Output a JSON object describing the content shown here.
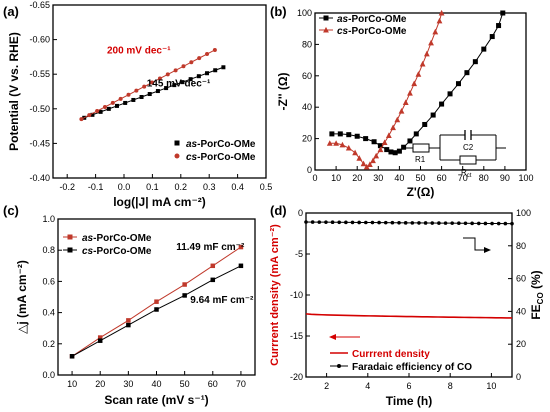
{
  "colors": {
    "as": "#000000",
    "cs": "#c0392b",
    "red": "#d40000",
    "axis": "#000000"
  },
  "chart_data": [
    {
      "panel_label": "(a)",
      "type": "line",
      "xlabel": "log(|J| mA cm⁻²)",
      "ylabel": "Potential (V vs. RHE)",
      "xlim": [
        -0.25,
        0.5
      ],
      "ylim": [
        -0.4,
        -0.65
      ],
      "y_reversed": true,
      "xticks": [
        "-0.2",
        "-0.1",
        "0.0",
        "0.1",
        "0.2",
        "0.3",
        "0.4",
        "0.5"
      ],
      "yticks": [
        "-0.40",
        "-0.45",
        "-0.50",
        "-0.55",
        "-0.60",
        "-0.65"
      ],
      "legend_position": "bottom-right",
      "series": [
        {
          "name": "as-PorCo-OMe",
          "marker": "square",
          "color": "#000000",
          "x_range": [
            -0.14,
            0.35
          ],
          "y_range": [
            -0.487,
            -0.56
          ]
        },
        {
          "name": "cs-PorCo-OMe",
          "marker": "circle",
          "color": "#c0392b",
          "x_range": [
            -0.15,
            0.32
          ],
          "y_range": [
            -0.485,
            -0.585
          ]
        }
      ],
      "annotations": [
        {
          "text": "200 mV dec⁻¹",
          "x": -0.06,
          "y": -0.58,
          "color": "#d40000"
        },
        {
          "text": "145 mV dec⁻¹",
          "x": 0.08,
          "y": -0.532,
          "color": "#000000"
        }
      ]
    },
    {
      "panel_label": "(b)",
      "type": "scatter",
      "xlabel": "Z'(Ω)",
      "ylabel": "-Z'' (Ω)",
      "xlim": [
        0,
        100
      ],
      "ylim": [
        0,
        100
      ],
      "xticks": [
        "0",
        "10",
        "20",
        "30",
        "40",
        "50",
        "60",
        "70",
        "80",
        "90",
        "100"
      ],
      "yticks": [
        "0",
        "20",
        "40",
        "60",
        "80",
        "100"
      ],
      "legend_position": "top-left",
      "series": [
        {
          "name": "as-PorCo-OMe",
          "marker": "square",
          "color": "#000000",
          "points": [
            [
              8,
              23
            ],
            [
              12,
              23
            ],
            [
              16,
              22.5
            ],
            [
              20,
              21.5
            ],
            [
              24,
              20
            ],
            [
              28,
              18
            ],
            [
              31,
              15.5
            ],
            [
              34,
              13
            ],
            [
              36,
              11.5
            ],
            [
              38,
              11
            ],
            [
              40,
              12
            ],
            [
              42,
              14.5
            ],
            [
              45,
              18.5
            ],
            [
              48,
              23
            ],
            [
              52,
              29
            ],
            [
              56,
              35
            ],
            [
              60,
              42
            ],
            [
              64,
              48.5
            ],
            [
              68,
              55
            ],
            [
              72,
              62
            ],
            [
              76,
              69
            ],
            [
              80,
              77
            ],
            [
              84,
              85
            ],
            [
              87,
              92
            ],
            [
              89,
              100
            ]
          ]
        },
        {
          "name": "cs-PorCo-OMe",
          "marker": "triangle",
          "color": "#c0392b",
          "points": [
            [
              7,
              17
            ],
            [
              10,
              17
            ],
            [
              13,
              16
            ],
            [
              16,
              14
            ],
            [
              19,
              11
            ],
            [
              21,
              7.5
            ],
            [
              23,
              4
            ],
            [
              24.5,
              2
            ],
            [
              26,
              3.5
            ],
            [
              27.5,
              6
            ],
            [
              29,
              9
            ],
            [
              31,
              13
            ],
            [
              33,
              17.5
            ],
            [
              35,
              22
            ],
            [
              37,
              27
            ],
            [
              39,
              32
            ],
            [
              41,
              37.5
            ],
            [
              43,
              43
            ],
            [
              45,
              49
            ],
            [
              47,
              55
            ],
            [
              49,
              61
            ],
            [
              51,
              67.5
            ],
            [
              53,
              74
            ],
            [
              55,
              81
            ],
            [
              57,
              88
            ],
            [
              59,
              95
            ],
            [
              60,
              100
            ]
          ]
        }
      ],
      "circuit_labels": {
        "c2": "C2",
        "r1": "R1",
        "rct_main": "R",
        "rct_sub": "ct"
      }
    },
    {
      "panel_label": "(c)",
      "type": "line",
      "xlabel": "Scan rate (mV s⁻¹)",
      "ylabel": "△j (mA cm⁻²)",
      "xlim": [
        5,
        75
      ],
      "ylim": [
        0.0,
        1.0
      ],
      "xticks": [
        "10",
        "20",
        "30",
        "40",
        "50",
        "60",
        "70"
      ],
      "yticks": [
        "0.0",
        "0.2",
        "0.4",
        "0.6",
        "0.8",
        "1.0"
      ],
      "legend_position": "top-left",
      "categories": [
        10,
        20,
        30,
        40,
        50,
        60,
        70
      ],
      "series": [
        {
          "name": "as-PorCo-OMe",
          "marker": "square",
          "color": "#c0392b",
          "values": [
            0.12,
            0.24,
            0.35,
            0.47,
            0.58,
            0.7,
            0.82
          ]
        },
        {
          "name": "cs-PorCo-OMe",
          "marker": "square",
          "color": "#000000",
          "values": [
            0.12,
            0.22,
            0.32,
            0.42,
            0.51,
            0.61,
            0.7
          ]
        }
      ],
      "annotations": [
        {
          "text": "11.49 mF cm⁻²",
          "x": 47,
          "y": 0.8,
          "color": "#000000"
        },
        {
          "text": "9.64 mF cm⁻²",
          "x": 52,
          "y": 0.46,
          "color": "#000000"
        }
      ]
    },
    {
      "panel_label": "(d)",
      "type": "line",
      "xlabel": "Time (h)",
      "ylabel_left": "Currrent density (mA cm⁻²)",
      "ylabel_right": "FE",
      "ylabel_right_sub": "CO",
      "ylabel_right_unit": " (%)",
      "xlim": [
        1,
        11
      ],
      "ylim_left": [
        -20,
        0
      ],
      "ylim_right": [
        0,
        100
      ],
      "xticks": [
        "2",
        "4",
        "6",
        "8",
        "10"
      ],
      "yticks_left": [
        "0",
        "-5",
        "-10",
        "-15",
        "-20"
      ],
      "yticks_right": [
        "0",
        "20",
        "40",
        "60",
        "80",
        "100"
      ],
      "legend_position": "bottom-right",
      "series": [
        {
          "name": "Currrent density",
          "axis": "left",
          "color": "#d40000",
          "x_range": [
            1,
            11
          ],
          "y_range": [
            -12.3,
            -12.8
          ]
        },
        {
          "name": "Faradaic efficiency of CO",
          "axis": "right",
          "color": "#000000",
          "marker": "circle",
          "x_range": [
            1,
            11
          ],
          "y_range": [
            94.5,
            93.5
          ]
        }
      ]
    }
  ]
}
